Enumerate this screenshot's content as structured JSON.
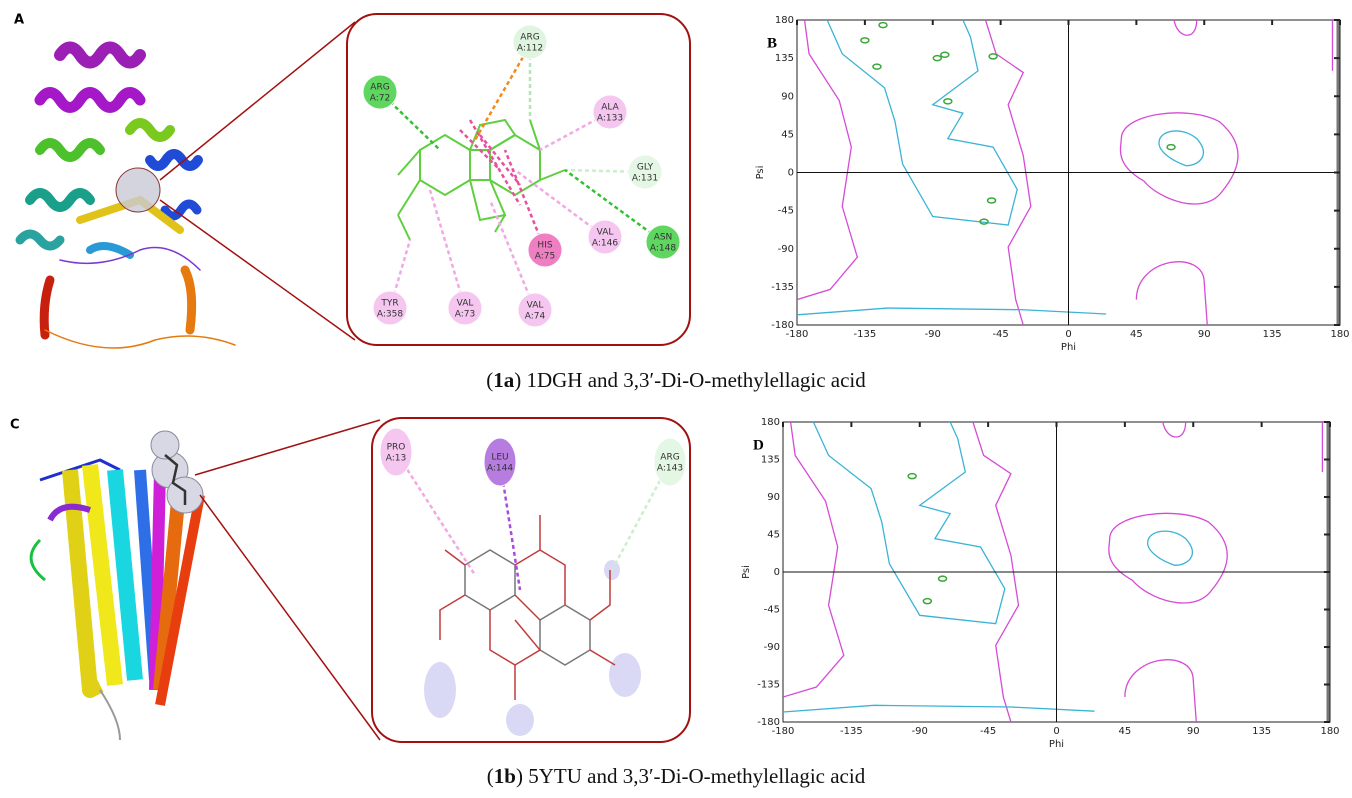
{
  "rows": [
    {
      "structure_label": "A",
      "residues": [
        {
          "name": "ARG",
          "id": "A:112",
          "color": "#dff5df"
        },
        {
          "name": "ARG",
          "id": "A:72",
          "color": "#5fd65f"
        },
        {
          "name": "ALA",
          "id": "A:133",
          "color": "#f5c6f0"
        },
        {
          "name": "GLY",
          "id": "A:131",
          "color": "#e4f7e4"
        },
        {
          "name": "ASN",
          "id": "A:148",
          "color": "#5fd65f"
        },
        {
          "name": "VAL",
          "id": "A:146",
          "color": "#f5c6f0"
        },
        {
          "name": "HIS",
          "id": "A:75",
          "color": "#ef7fc2"
        },
        {
          "name": "TYR",
          "id": "A:358",
          "color": "#f5c6f0"
        },
        {
          "name": "VAL",
          "id": "A:73",
          "color": "#f5c6f0"
        },
        {
          "name": "VAL",
          "id": "A:74",
          "color": "#f5c6f0"
        }
      ],
      "caption": [
        "(",
        "1a",
        ") 1DGH and 3,3′-Di-O-methylellagic acid"
      ]
    },
    {
      "structure_label": "C",
      "residues": [
        {
          "name": "PRO",
          "id": "A:13",
          "color": "#f5c6f0"
        },
        {
          "name": "LEU",
          "id": "A:144",
          "color": "#b77ce0"
        },
        {
          "name": "ARG",
          "id": "A:143",
          "color": "#e4f7e4"
        }
      ],
      "caption": [
        "(",
        "1b",
        ") 5YTU and 3,3′-Di-O-methylellagic acid"
      ]
    }
  ],
  "chart_data": [
    {
      "type": "scatter",
      "label": "B",
      "x_label": "Phi",
      "y_label": "Psi",
      "color": "#3aa63a",
      "x": [
        -123,
        -135,
        -127,
        -87,
        -82,
        -50,
        -80,
        68,
        -51,
        -56
      ],
      "y": [
        174,
        156,
        125,
        135,
        139,
        137,
        84,
        30,
        -33,
        -58
      ],
      "xlim": [
        -180,
        180
      ],
      "ylim": [
        -180,
        180
      ],
      "xticks": [
        -180,
        -135,
        -90,
        -45,
        0,
        45,
        90,
        135,
        180
      ],
      "yticks": [
        -180,
        -135,
        -90,
        -45,
        0,
        45,
        90,
        135,
        180
      ]
    },
    {
      "type": "scatter",
      "label": "D",
      "x_label": "Phi",
      "y_label": "Psi",
      "color": "#3aa63a",
      "x": [
        -95,
        -75,
        -85
      ],
      "y": [
        115,
        -8,
        -35
      ],
      "xlim": [
        -180,
        180
      ],
      "ylim": [
        -180,
        180
      ],
      "xticks": [
        -180,
        -135,
        -90,
        -45,
        0,
        45,
        90,
        135,
        180
      ],
      "yticks": [
        -180,
        -135,
        -90,
        -45,
        0,
        45,
        90,
        135,
        180
      ]
    }
  ]
}
